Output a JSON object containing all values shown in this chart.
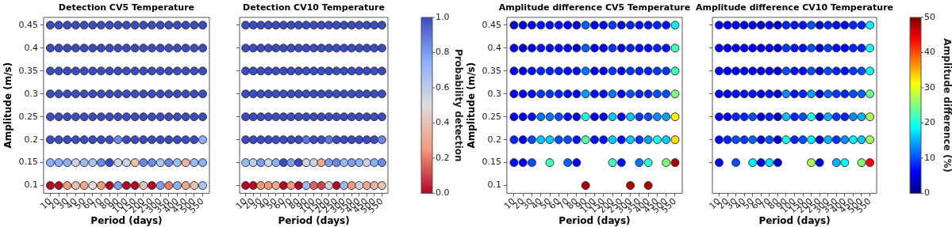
{
  "chart_data": [
    {
      "type": "scatter",
      "title": "Detection CV5 Temperature",
      "xlabel": "Period (days)",
      "ylabel": "Amplitude (m/s)",
      "categories": [
        "10",
        "20",
        "30",
        "40",
        "50",
        "60",
        "70",
        "80",
        "90",
        "100",
        "150",
        "200",
        "250",
        "300",
        "350",
        "400",
        "450",
        "500",
        "550"
      ],
      "ylim": [
        0.083,
        0.467
      ],
      "yticks": [
        0.1,
        0.15,
        0.2,
        0.25,
        0.3,
        0.35,
        0.4,
        0.45
      ],
      "marker": "circle",
      "series": [
        {
          "color": "#3b4cc0",
          "values": [
            0.45,
            0.45,
            0.45,
            0.45,
            0.45,
            0.45,
            0.45,
            0.45,
            0.45,
            0.45,
            0.45,
            0.45,
            0.45,
            0.45,
            0.45,
            0.45,
            0.45,
            0.45,
            0.45
          ]
        },
        {
          "color": "#3b4cc0",
          "values": [
            0.4,
            0.4,
            0.4,
            0.4,
            0.4,
            0.4,
            0.4,
            0.4,
            0.4,
            0.4,
            0.4,
            0.4,
            0.4,
            0.4,
            0.4,
            0.4,
            0.4,
            0.4,
            0.4
          ]
        },
        {
          "color": "#3b4cc0",
          "values": [
            0.35,
            0.35,
            0.35,
            0.35,
            0.35,
            0.35,
            0.35,
            0.35,
            0.35,
            0.35,
            0.35,
            0.35,
            0.35,
            0.35,
            0.35,
            0.35,
            0.35,
            0.35,
            0.35
          ]
        },
        {
          "color": "#3b4cc0",
          "values": [
            0.3,
            0.3,
            0.3,
            0.3,
            0.3,
            0.3,
            0.3,
            0.3,
            0.3,
            0.3,
            0.3,
            0.3,
            0.3,
            0.3,
            0.3,
            0.3,
            0.3,
            0.3,
            0.3
          ]
        },
        {
          "color": "#3b4cc0",
          "values": [
            0.25,
            0.25,
            0.25,
            0.25,
            0.25,
            0.25,
            0.25,
            0.25,
            0.25,
            0.25,
            0.25,
            0.25,
            0.25,
            0.25,
            0.25,
            0.25,
            0.25,
            0.25,
            0.25
          ]
        },
        {
          "values": [
            0.2,
            0.2,
            0.2,
            0.2,
            0.2,
            0.2,
            0.2,
            0.2,
            0.2,
            0.2,
            0.2,
            0.2,
            0.2,
            0.2,
            0.2,
            0.2,
            0.2,
            0.2,
            0.2
          ],
          "colors": [
            "#3b4cc0",
            "#3b4cc0",
            "#3b4cc0",
            "#3b4cc0",
            "#3b4cc0",
            "#3b4cc0",
            "#3b4cc0",
            "#3b4cc0",
            "#6c88e5",
            "#3b4cc0",
            "#3b4cc0",
            "#3b4cc0",
            "#3b4cc0",
            "#3b4cc0",
            "#3b4cc0",
            "#3b4cc0",
            "#3b4cc0",
            "#3b4cc0",
            "#8db0fe"
          ]
        },
        {
          "values": [
            0.15,
            0.15,
            0.15,
            0.15,
            0.15,
            0.15,
            0.15,
            0.15,
            0.15,
            0.15,
            0.15,
            0.15,
            0.15,
            0.15,
            0.15,
            0.15,
            0.15,
            0.15,
            0.15
          ],
          "colors": [
            "#8db0fe",
            "#8db0fe",
            "#8db0fe",
            "#cdd3e3",
            "#9db9f7",
            "#adc2f0",
            "#6c88e5",
            "#3b4cc0",
            "#cdd3e3",
            "#cdd3e3",
            "#e6c2b5",
            "#6c88e5",
            "#6c88e5",
            "#adc2f0",
            "#6c88e5",
            "#9db9f7",
            "#ebb4a2",
            "#9db9f7",
            "#8db0fe"
          ]
        },
        {
          "values": [
            0.1,
            0.1,
            0.1,
            0.1,
            0.1,
            0.1,
            0.1,
            0.1,
            0.1,
            0.1,
            0.1,
            0.1,
            0.1,
            0.1,
            0.1,
            0.1,
            0.1,
            0.1,
            0.1
          ],
          "colors": [
            "#b40426",
            "#b40426",
            "#f49a7b",
            "#e6c2b5",
            "#efa78e",
            "#dddcdc",
            "#f49a7b",
            "#b40426",
            "#7d9cf2",
            "#b40426",
            "#b40426",
            "#e6c2b5",
            "#b40426",
            "#7d9cf2",
            "#e77c6a",
            "#8db0fe",
            "#efa78e",
            "#e6c2b5",
            "#adc2f0"
          ]
        }
      ]
    },
    {
      "type": "scatter",
      "title": "Detection CV10 Temperature",
      "xlabel": "Period (days)",
      "categories": [
        "10",
        "20",
        "30",
        "40",
        "50",
        "60",
        "70",
        "80",
        "90",
        "100",
        "150",
        "200",
        "250",
        "300",
        "350",
        "400",
        "450",
        "500",
        "550"
      ],
      "ylim": [
        0.083,
        0.467
      ],
      "yticks": [
        0.1,
        0.15,
        0.2,
        0.25,
        0.3,
        0.35,
        0.4,
        0.45
      ],
      "tick_labels": "x",
      "marker": "circle",
      "clabel": "Probability detection",
      "clim": [
        0,
        1
      ],
      "cticks": [
        {
          "value": 0,
          "label": "0.0"
        },
        0.2,
        0.4,
        0.6,
        0.8,
        {
          "value": 1,
          "label": "1.0"
        }
      ],
      "series": [
        {
          "color": "#3b4cc0",
          "values": [
            0.45,
            0.45,
            0.45,
            0.45,
            0.45,
            0.45,
            0.45,
            0.45,
            0.45,
            0.45,
            0.45,
            0.45,
            0.45,
            0.45,
            0.45,
            0.45,
            0.45,
            0.45,
            0.45
          ]
        },
        {
          "color": "#3b4cc0",
          "values": [
            0.4,
            0.4,
            0.4,
            0.4,
            0.4,
            0.4,
            0.4,
            0.4,
            0.4,
            0.4,
            0.4,
            0.4,
            0.4,
            0.4,
            0.4,
            0.4,
            0.4,
            0.4,
            0.4
          ]
        },
        {
          "color": "#3b4cc0",
          "values": [
            0.35,
            0.35,
            0.35,
            0.35,
            0.35,
            0.35,
            0.35,
            0.35,
            0.35,
            0.35,
            0.35,
            0.35,
            0.35,
            0.35,
            0.35,
            0.35,
            0.35,
            0.35,
            0.35
          ]
        },
        {
          "color": "#3b4cc0",
          "values": [
            0.3,
            0.3,
            0.3,
            0.3,
            0.3,
            0.3,
            0.3,
            0.3,
            0.3,
            0.3,
            0.3,
            0.3,
            0.3,
            0.3,
            0.3,
            0.3,
            0.3,
            0.3,
            0.3
          ]
        },
        {
          "color": "#3b4cc0",
          "values": [
            0.25,
            0.25,
            0.25,
            0.25,
            0.25,
            0.25,
            0.25,
            0.25,
            0.25,
            0.25,
            0.25,
            0.25,
            0.25,
            0.25,
            0.25,
            0.25,
            0.25,
            0.25,
            0.25
          ]
        },
        {
          "values": [
            0.2,
            0.2,
            0.2,
            0.2,
            0.2,
            0.2,
            0.2,
            0.2,
            0.2,
            0.2,
            0.2,
            0.2,
            0.2,
            0.2,
            0.2,
            0.2,
            0.2,
            0.2,
            0.2
          ],
          "colors": [
            "#3b4cc0",
            "#3b4cc0",
            "#3b4cc0",
            "#3b4cc0",
            "#3b4cc0",
            "#3b4cc0",
            "#3b4cc0",
            "#3b4cc0",
            "#5c74d9",
            "#3b4cc0",
            "#3b4cc0",
            "#5c74d9",
            "#3b4cc0",
            "#3b4cc0",
            "#3b4cc0",
            "#3b4cc0",
            "#3b4cc0",
            "#3b4cc0",
            "#6c88e5"
          ]
        },
        {
          "values": [
            0.15,
            0.15,
            0.15,
            0.15,
            0.15,
            0.15,
            0.15,
            0.15,
            0.15,
            0.15,
            0.15,
            0.15,
            0.15,
            0.15,
            0.15,
            0.15,
            0.15,
            0.15,
            0.15
          ],
          "colors": [
            "#9db9f7",
            "#bdcaea",
            "#7d9cf2",
            "#cdd3e3",
            "#8db0fe",
            "#3b4cc0",
            "#7d9cf2",
            "#3b4cc0",
            "#cdd3e3",
            "#cdd3e3",
            "#efa78e",
            "#7d9cf2",
            "#6c88e5",
            "#9db9f7",
            "#7d9cf2",
            "#8db0fe",
            "#cdd3e3",
            "#8db0fe",
            "#6c88e5"
          ]
        },
        {
          "values": [
            0.1,
            0.1,
            0.1,
            0.1,
            0.1,
            0.1,
            0.1,
            0.1,
            0.1,
            0.1,
            0.1,
            0.1,
            0.1,
            0.1,
            0.1,
            0.1,
            0.1,
            0.1,
            0.1
          ],
          "colors": [
            "#b40426",
            "#b40426",
            "#f49a7b",
            "#f49a7b",
            "#efa78e",
            "#b40426",
            "#f49a7b",
            "#b40426",
            "#9db9f7",
            "#da5e59",
            "#ce4048",
            "#cdd3e3",
            "#b40426",
            "#9db9f7",
            "#f49a7b",
            "#cdd3e3",
            "#efa78e",
            "#ebb4a2",
            "#e6c2b5"
          ]
        }
      ]
    },
    {
      "type": "scatter",
      "title": "Amplitude difference CV5 Temperature",
      "xlabel": "Period (days)",
      "ylabel": "Amplitude (m/s)",
      "categories": [
        "10",
        "20",
        "30",
        "40",
        "50",
        "60",
        "70",
        "80",
        "90",
        "100",
        "150",
        "200",
        "250",
        "300",
        "350",
        "400",
        "450",
        "500",
        "550"
      ],
      "ylim": [
        0.083,
        0.467
      ],
      "yticks": [
        0.1,
        0.15,
        0.2,
        0.25,
        0.3,
        0.35,
        0.4,
        0.45
      ],
      "marker": "circle",
      "series": [
        {
          "values": [
            0.45,
            0.45,
            0.45,
            0.45,
            0.45,
            0.45,
            0.45,
            0.45,
            0.45,
            0.45,
            0.45,
            0.45,
            0.45,
            0.45,
            0.45,
            0.45,
            0.45,
            0.45,
            0.45
          ],
          "colors": [
            "#0000d1",
            "#0000e6",
            "#0000fa",
            "#000fff",
            "#000fff",
            "#000fff",
            "#0000fa",
            "#0000e6",
            "#0061ff",
            "#0000fa",
            "#0000fa",
            "#0038ff",
            "#0000e6",
            "#0024ff",
            "#000fff",
            "#000fff",
            "#0024ff",
            "#000fff",
            "#00f0ff"
          ]
        },
        {
          "values": [
            0.4,
            0.4,
            0.4,
            0.4,
            0.4,
            0.4,
            0.4,
            0.4,
            0.4,
            0.4,
            0.4,
            0.4,
            0.4,
            0.4,
            0.4,
            0.4,
            0.4,
            0.4,
            0.4
          ],
          "colors": [
            "#0000fa",
            "#0000e6",
            "#0000fa",
            "#000fff",
            "#000fff",
            "#000fff",
            "#000fff",
            "#0000d1",
            "#0061ff",
            "#0000fa",
            "#0000fa",
            "#0038ff",
            "#0000e6",
            "#0024ff",
            "#000fff",
            "#000fff",
            "#0024ff",
            "#000fff",
            "#42ffbd"
          ]
        },
        {
          "values": [
            0.35,
            0.35,
            0.35,
            0.35,
            0.35,
            0.35,
            0.35,
            0.35,
            0.35,
            0.35,
            0.35,
            0.35,
            0.35,
            0.35,
            0.35,
            0.35,
            0.35,
            0.35,
            0.35
          ],
          "colors": [
            "#0000fa",
            "#0000e6",
            "#000fff",
            "#0024ff",
            "#0024ff",
            "#0024ff",
            "#000fff",
            "#000fff",
            "#0075ff",
            "#0000fa",
            "#0000fa",
            "#0038ff",
            "#0000fa",
            "#0038ff",
            "#0024ff",
            "#0024ff",
            "#0038ff",
            "#0038ff",
            "#42ffbd"
          ]
        },
        {
          "values": [
            0.3,
            0.3,
            0.3,
            0.3,
            0.3,
            0.3,
            0.3,
            0.3,
            0.3,
            0.3,
            0.3,
            0.3,
            0.3,
            0.3,
            0.3,
            0.3,
            0.3,
            0.3,
            0.3
          ],
          "colors": [
            "#0000fa",
            "#0000fa",
            "#000fff",
            "#0038ff",
            "#0038ff",
            "#0024ff",
            "#000fff",
            "#0000fa",
            "#009eff",
            "#000fff",
            "#000fff",
            "#0075ff",
            "#0000fa",
            "#004dff",
            "#0024ff",
            "#0024ff",
            "#004dff",
            "#004dff",
            "#80ff7f"
          ]
        },
        {
          "values": [
            0.25,
            0.25,
            0.25,
            0.25,
            0.25,
            0.25,
            0.25,
            0.25,
            0.25,
            0.25,
            0.25,
            0.25,
            0.25,
            0.25,
            0.25,
            0.25,
            0.25,
            0.25,
            0.25
          ],
          "colors": [
            "#0000fa",
            "#0000fa",
            "#000fff",
            "#0075ff",
            "#0075ff",
            "#004dff",
            "#000fff",
            "#0000e6",
            "#1affe5",
            "#0000fa",
            "#0000fa",
            "#00c7ff",
            "#0000fa",
            "#00c7ff",
            "#0038ff",
            "#004dff",
            "#008aff",
            "#009eff",
            "#fff000"
          ]
        },
        {
          "values": [
            0.2,
            0.2,
            0.2,
            0.2,
            0.2,
            0.2,
            0.2,
            0.2,
            0.2,
            0.2,
            0.2,
            0.2,
            0.2,
            0.2,
            0.2,
            0.2,
            0.2,
            0.2,
            0.2
          ],
          "colors": [
            "#0024ff",
            "#0000fa",
            "#004dff",
            "#00c7ff",
            "#00c7ff",
            "#004dff",
            "#004dff",
            "#000fff",
            "#57ffa8",
            "#000fff",
            "#000fff",
            "#00c7ff",
            "#000fff",
            "#00c7ff",
            "#0038ff",
            "#009eff",
            "#1affe5",
            "#00c7ff",
            "#ffdb00"
          ]
        },
        {
          "values": [
            0.15,
            0.15,
            0.15,
            null,
            0.15,
            null,
            0.15,
            0.15,
            null,
            null,
            null,
            0.15,
            0.15,
            null,
            0.15,
            0.15,
            null,
            0.15,
            0.15
          ],
          "colors": [
            "#000fff",
            "#0000fa",
            "#004dff",
            null,
            "#42ffbd",
            null,
            "#0061ff",
            "#0000fa",
            null,
            null,
            null,
            "#42ffbd",
            "#000fff",
            null,
            "#0075ff",
            "#2effd1",
            null,
            "#80ff7f",
            "#a90000"
          ]
        },
        {
          "values": [
            null,
            null,
            null,
            null,
            null,
            null,
            null,
            null,
            0.1,
            null,
            null,
            null,
            null,
            0.1,
            null,
            0.1,
            null,
            null,
            null
          ],
          "colors": [
            null,
            null,
            null,
            null,
            null,
            null,
            null,
            null,
            "#a90000",
            null,
            null,
            null,
            null,
            "#a90000",
            null,
            "#a90000",
            null,
            null,
            null
          ]
        }
      ]
    },
    {
      "type": "scatter",
      "title": "Amplitude difference CV10 Temperature",
      "xlabel": "Period (days)",
      "categories": [
        "10",
        "20",
        "30",
        "40",
        "50",
        "60",
        "70",
        "80",
        "90",
        "100",
        "150",
        "200",
        "250",
        "300",
        "350",
        "400",
        "450",
        "500",
        "550"
      ],
      "ylim": [
        0.083,
        0.467
      ],
      "yticks": [
        0.15,
        0.2,
        0.25,
        0.3,
        0.35,
        0.4,
        0.45
      ],
      "tick_labels": "x",
      "marker": "circle",
      "clabel": "Amplitude difference (%)",
      "clim": [
        0,
        50
      ],
      "cticks": [
        0,
        10,
        20,
        30,
        40,
        50
      ],
      "series": [
        {
          "values": [
            0.45,
            0.45,
            0.45,
            0.45,
            0.45,
            0.45,
            0.45,
            0.45,
            0.45,
            0.45,
            0.45,
            0.45,
            0.45,
            0.45,
            0.45,
            0.45,
            0.45,
            0.45,
            0.45
          ],
          "colors": [
            "#0000fa",
            "#0000fa",
            "#0000fa",
            "#0000fa",
            "#0000fa",
            "#0000d1",
            "#0000fa",
            "#0000d1",
            "#0024ff",
            "#000fff",
            "#000fff",
            "#004dff",
            "#0000d1",
            "#0024ff",
            "#000fff",
            "#0000fa",
            "#0024ff",
            "#0024ff",
            "#00f0ff"
          ]
        },
        {
          "values": [
            0.4,
            0.4,
            0.4,
            0.4,
            0.4,
            0.4,
            0.4,
            0.4,
            0.4,
            0.4,
            0.4,
            0.4,
            0.4,
            0.4,
            0.4,
            0.4,
            0.4,
            0.4,
            0.4
          ],
          "colors": [
            "#0000fa",
            "#0000fa",
            "#0000fa",
            "#0000fa",
            "#0000fa",
            "#0000e6",
            "#0000fa",
            "#0000d1",
            "#0038ff",
            "#000fff",
            "#000fff",
            "#004dff",
            "#0000d1",
            "#0038ff",
            "#000fff",
            "#0000fa",
            "#0024ff",
            "#0024ff",
            "#05fffa"
          ]
        },
        {
          "values": [
            0.35,
            0.35,
            0.35,
            0.35,
            0.35,
            0.35,
            0.35,
            0.35,
            0.35,
            0.35,
            0.35,
            0.35,
            0.35,
            0.35,
            0.35,
            0.35,
            0.35,
            0.35,
            0.35
          ],
          "colors": [
            "#0000fa",
            "#0000fa",
            "#0000fa",
            "#0000fa",
            "#0000fa",
            "#0000e6",
            "#0000fa",
            "#0000d1",
            "#004dff",
            "#000fff",
            "#000fff",
            "#004dff",
            "#0000d1",
            "#004dff",
            "#0024ff",
            "#000fff",
            "#0038ff",
            "#004dff",
            "#05fffa"
          ]
        },
        {
          "values": [
            0.3,
            0.3,
            0.3,
            0.3,
            0.3,
            0.3,
            0.3,
            0.3,
            0.3,
            0.3,
            0.3,
            0.3,
            0.3,
            0.3,
            0.3,
            0.3,
            0.3,
            0.3,
            0.3
          ],
          "colors": [
            "#0000fa",
            "#0000fa",
            "#000fff",
            "#000fff",
            "#000fff",
            "#0000e6",
            "#000fff",
            "#0000d1",
            "#008aff",
            "#000fff",
            "#0024ff",
            "#009eff",
            "#0000d1",
            "#0061ff",
            "#0038ff",
            "#0024ff",
            "#004dff",
            "#0061ff",
            "#6bff94"
          ]
        },
        {
          "values": [
            0.25,
            0.25,
            0.25,
            0.25,
            0.25,
            0.25,
            0.25,
            0.25,
            0.25,
            0.25,
            0.25,
            0.25,
            0.25,
            0.25,
            0.25,
            0.25,
            0.25,
            0.25,
            0.25
          ],
          "colors": [
            "#0000fa",
            "#0000fa",
            "#0024ff",
            "#0024ff",
            "#004dff",
            "#0000e6",
            "#0024ff",
            "#0000d1",
            "#00c7ff",
            "#0024ff",
            "#004dff",
            "#1affe5",
            "#0000d1",
            "#00b2ff",
            "#0038ff",
            "#0024ff",
            "#008aff",
            "#00b2ff",
            "#a8ff57"
          ]
        },
        {
          "values": [
            0.2,
            0.2,
            0.2,
            0.2,
            0.2,
            0.2,
            0.2,
            0.2,
            0.2,
            0.2,
            0.2,
            0.2,
            0.2,
            0.2,
            0.2,
            0.2,
            0.2,
            0.2,
            0.2
          ],
          "colors": [
            "#0000fa",
            "#0024ff",
            "#004dff",
            "#0038ff",
            "#0061ff",
            "#0000e6",
            "#004dff",
            "#0000d1",
            "#1affe5",
            "#0024ff",
            "#004dff",
            "#00f0ff",
            "#0000d1",
            "#00b2ff",
            "#0038ff",
            "#008aff",
            "#00f0ff",
            "#00c7ff",
            "#a8ff57"
          ]
        },
        {
          "values": [
            0.15,
            null,
            0.15,
            null,
            0.15,
            0.15,
            0.15,
            0.15,
            null,
            null,
            null,
            0.15,
            0.15,
            null,
            0.15,
            0.15,
            null,
            0.15,
            0.15
          ],
          "colors": [
            "#0000fa",
            null,
            "#004dff",
            null,
            "#00f0ff",
            "#0000e6",
            "#00dbff",
            "#0000d1",
            null,
            null,
            null,
            "#a8ff57",
            "#0000e6",
            null,
            "#00b2ff",
            "#05fffa",
            null,
            "#80ff7f",
            "#fa0000"
          ]
        }
      ]
    }
  ]
}
